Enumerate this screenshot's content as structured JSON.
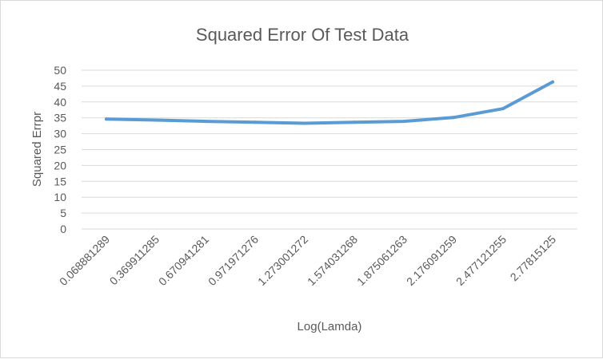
{
  "chart_data": {
    "type": "line",
    "title": "Squared Error Of Test Data",
    "xlabel": "Log(Lamda)",
    "ylabel": "Squared Errpr",
    "categories": [
      "0.068881289",
      "0.369911285",
      "0.670941281",
      "0.971971276",
      "1.273001272",
      "1.574031268",
      "1.875061263",
      "2.176091259",
      "2.477121255",
      "2.77815125"
    ],
    "series": [
      {
        "values": [
          34.6,
          34.3,
          33.9,
          33.6,
          33.3,
          33.6,
          33.9,
          35.1,
          37.9,
          46.3
        ]
      }
    ],
    "yticks": [
      "0",
      "5",
      "10",
      "15",
      "20",
      "25",
      "30",
      "35",
      "40",
      "45",
      "50"
    ],
    "ylim": [
      0,
      50
    ],
    "grid": true,
    "legend": "none",
    "colors": {
      "series": "#5b9bd5",
      "grid": "#d9d9d9",
      "text": "#595959"
    }
  }
}
